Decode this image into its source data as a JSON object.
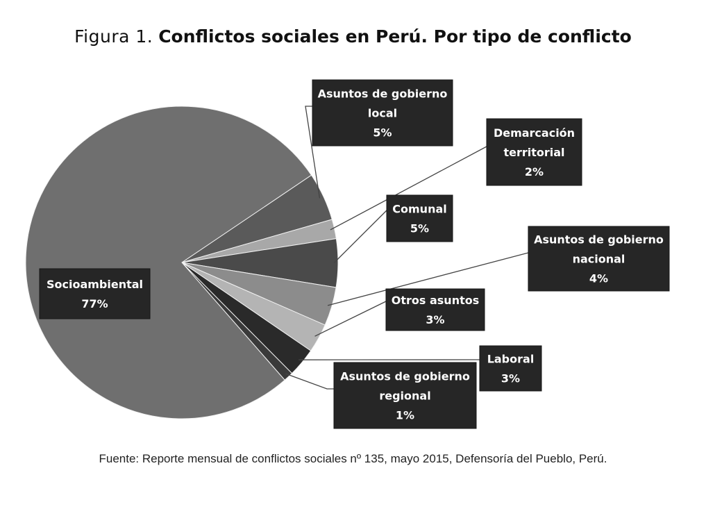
{
  "title": {
    "number": "Figura 1.",
    "text": "Conflictos sociales en Perú. Por tipo de conflicto"
  },
  "source": "Fuente: Reporte mensual de conflictos sociales nº 135, mayo 2015, Defensoría del Pueblo, Perú.",
  "chart_data": {
    "type": "pie",
    "title": "Figura 1. Conflictos sociales en Perú. Por tipo de conflicto",
    "legend": "callouts",
    "slices": [
      {
        "id": "socioambiental",
        "label_lines": [
          "Socioambiental"
        ],
        "value": 77,
        "value_label": "77%",
        "color": "#6f6f6f"
      },
      {
        "id": "gob-local",
        "label_lines": [
          "Asuntos de gobierno",
          "local"
        ],
        "value": 5,
        "value_label": "5%",
        "color": "#5a5a5a"
      },
      {
        "id": "demarcacion",
        "label_lines": [
          "Demarcación",
          "territorial"
        ],
        "value": 2,
        "value_label": "2%",
        "color": "#a8a8a8"
      },
      {
        "id": "comunal",
        "label_lines": [
          "Comunal"
        ],
        "value": 5,
        "value_label": "5%",
        "color": "#4a4a4a"
      },
      {
        "id": "gob-nacional",
        "label_lines": [
          "Asuntos de gobierno",
          "nacional"
        ],
        "value": 4,
        "value_label": "4%",
        "color": "#8c8c8c"
      },
      {
        "id": "otros",
        "label_lines": [
          "Otros asuntos"
        ],
        "value": 3,
        "value_label": "3%",
        "color": "#b4b4b4"
      },
      {
        "id": "laboral",
        "label_lines": [
          "Laboral"
        ],
        "value": 3,
        "value_label": "3%",
        "color": "#2a2a2a"
      },
      {
        "id": "gob-regional",
        "label_lines": [
          "Asuntos de gobierno",
          "regional"
        ],
        "value": 1,
        "value_label": "1%",
        "color": "#3a3a3a"
      }
    ],
    "colors": {
      "callout_bg": "#262626",
      "callout_border": "#151515",
      "callout_text": "#ffffff",
      "leader": "#444444"
    }
  }
}
